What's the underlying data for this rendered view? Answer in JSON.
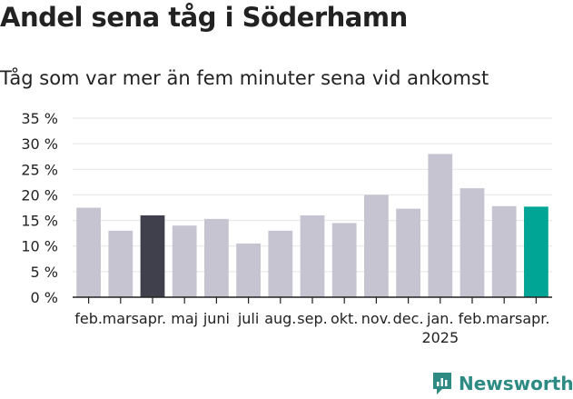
{
  "title": "Andel sena tåg i Söderhamn",
  "subtitle": "Tåg som var mer än fem minuter sena vid ankomst",
  "brand": "Newsworthy",
  "colors": {
    "default": "#c6c4d0",
    "highlight_dark": "#403f4c",
    "highlight_teal": "#00a596",
    "grid": "#e5e5e5",
    "axis": "#222222"
  },
  "chart_data": {
    "type": "bar",
    "categories": [
      "feb.",
      "mars",
      "apr.",
      "maj",
      "juni",
      "juli",
      "aug.",
      "sep.",
      "okt.",
      "nov.",
      "dec.",
      "jan.",
      "feb.",
      "mars",
      "apr."
    ],
    "year_label": "2025",
    "year_label_at": "jan.",
    "values": [
      17.5,
      13,
      16,
      14,
      15.3,
      10.5,
      13,
      16,
      14.5,
      20,
      17.3,
      28,
      21.3,
      17.8,
      17.7
    ],
    "bar_colors": [
      "default",
      "default",
      "highlight_dark",
      "default",
      "default",
      "default",
      "default",
      "default",
      "default",
      "default",
      "default",
      "default",
      "default",
      "default",
      "highlight_teal"
    ],
    "yticks": [
      0,
      5,
      10,
      15,
      20,
      25,
      30,
      35
    ],
    "ytick_labels": [
      "0 %",
      "5 %",
      "10 %",
      "15 %",
      "20 %",
      "25 %",
      "30 %",
      "35 %"
    ],
    "ylim": [
      0,
      35
    ],
    "grid": true,
    "legend": false
  }
}
